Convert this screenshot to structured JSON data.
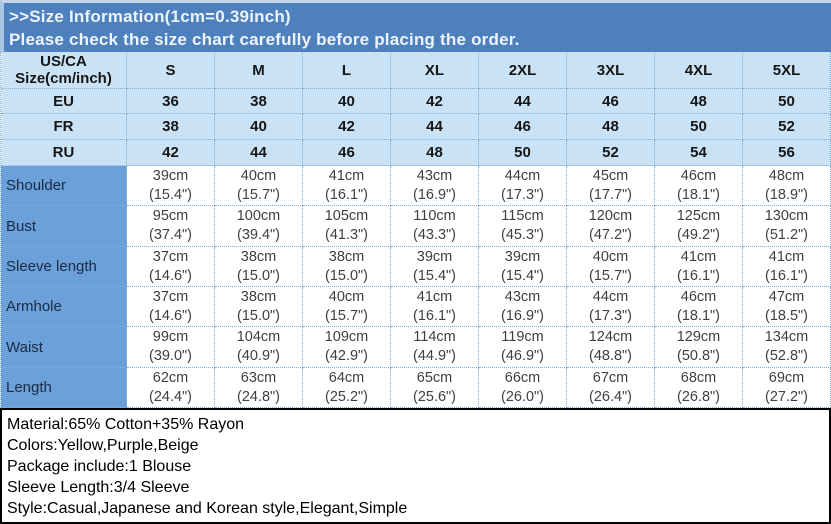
{
  "banner": {
    "title": ">>Size Information(1cm=0.39inch)",
    "subtitle": "Please check the size chart carefully before placing the order."
  },
  "size_chart": {
    "corner_line1": "US/CA",
    "corner_line2": "Size(cm/inch)",
    "sizes": [
      "S",
      "M",
      "L",
      "XL",
      "2XL",
      "3XL",
      "4XL",
      "5XL"
    ],
    "region_rows": [
      {
        "label": "EU",
        "values": [
          "36",
          "38",
          "40",
          "42",
          "44",
          "46",
          "48",
          "50"
        ]
      },
      {
        "label": "FR",
        "values": [
          "38",
          "40",
          "42",
          "44",
          "46",
          "48",
          "50",
          "52"
        ]
      },
      {
        "label": "RU",
        "values": [
          "42",
          "44",
          "46",
          "48",
          "50",
          "52",
          "54",
          "56"
        ]
      }
    ],
    "measurement_rows": [
      {
        "label": "Shoulder",
        "cm": [
          "39cm",
          "40cm",
          "41cm",
          "43cm",
          "44cm",
          "45cm",
          "46cm",
          "48cm"
        ],
        "inch": [
          "(15.4\")",
          "(15.7\")",
          "(16.1\")",
          "(16.9\")",
          "(17.3\")",
          "(17.7\")",
          "(18.1\")",
          "(18.9\")"
        ]
      },
      {
        "label": "Bust",
        "cm": [
          "95cm",
          "100cm",
          "105cm",
          "110cm",
          "115cm",
          "120cm",
          "125cm",
          "130cm"
        ],
        "inch": [
          "(37.4\")",
          "(39.4\")",
          "(41.3\")",
          "(43.3\")",
          "(45.3\")",
          "(47.2\")",
          "(49.2\")",
          "(51.2\")"
        ]
      },
      {
        "label": "Sleeve length",
        "cm": [
          "37cm",
          "38cm",
          "38cm",
          "39cm",
          "39cm",
          "40cm",
          "41cm",
          "41cm"
        ],
        "inch": [
          "(14.6\")",
          "(15.0\")",
          "(15.0\")",
          "(15.4\")",
          "(15.4\")",
          "(15.7\")",
          "(16.1\")",
          "(16.1\")"
        ]
      },
      {
        "label": "Armhole",
        "cm": [
          "37cm",
          "38cm",
          "40cm",
          "41cm",
          "43cm",
          "44cm",
          "46cm",
          "47cm"
        ],
        "inch": [
          "(14.6\")",
          "(15.0\")",
          "(15.7\")",
          "(16.1\")",
          "(16.9\")",
          "(17.3\")",
          "(18.1\")",
          "(18.5\")"
        ]
      },
      {
        "label": "Waist",
        "cm": [
          "99cm",
          "104cm",
          "109cm",
          "114cm",
          "119cm",
          "124cm",
          "129cm",
          "134cm"
        ],
        "inch": [
          "(39.0\")",
          "(40.9\")",
          "(42.9\")",
          "(44.9\")",
          "(46.9\")",
          "(48.8\")",
          "(50.8\")",
          "(52.8\")"
        ]
      },
      {
        "label": "Length",
        "cm": [
          "62cm",
          "63cm",
          "64cm",
          "65cm",
          "66cm",
          "67cm",
          "68cm",
          "69cm"
        ],
        "inch": [
          "(24.4\")",
          "(24.8\")",
          "(25.2\")",
          "(25.6\")",
          "(26.0\")",
          "(26.4\")",
          "(26.8\")",
          "(27.2\")"
        ]
      }
    ]
  },
  "details": {
    "lines": [
      "Material:65% Cotton+35% Rayon",
      "Colors:Yellow,Purple,Beige",
      "Package include:1 Blouse",
      "Sleeve Length:3/4 Sleeve",
      "Style:Casual,Japanese and Korean style,Elegant,Simple"
    ]
  },
  "colors": {
    "banner_bg": "#4E80BD",
    "banner_edge": "#c3d7ec",
    "banner_edge2": "#a9c6e4",
    "banner_text": "#eef4fb",
    "header_cell_bg": "#C9E2F5",
    "label_cell_bg": "#6BA0D8",
    "label_text": "#1a2b47",
    "grid_dotted": "#85AECE",
    "data_text": "#3F3F3F"
  }
}
